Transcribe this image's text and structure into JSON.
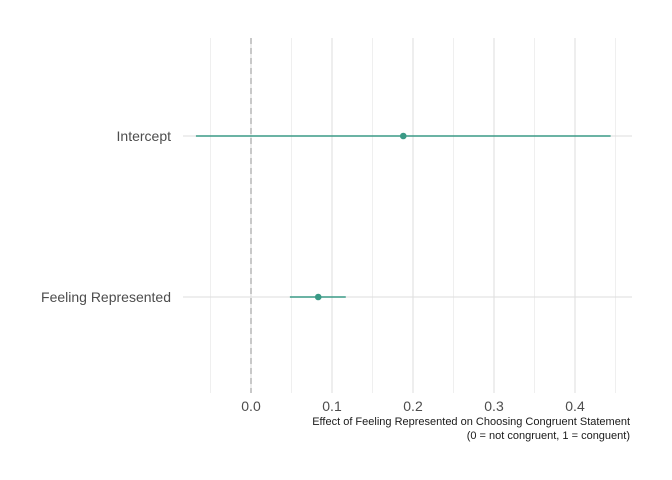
{
  "chart_data": {
    "type": "scatter",
    "subtype": "coefficient-plot",
    "title": "",
    "xlabel_lines": [
      "Effect of Feeling Represented on Choosing Congruent Statement",
      "(0 = not congruent, 1 = conguent)"
    ],
    "ylabel": "",
    "xlim": [
      -0.075,
      0.47
    ],
    "x_ticks": [
      0.0,
      0.1,
      0.2,
      0.3,
      0.4
    ],
    "x_tick_labels": [
      "0.0",
      "0.1",
      "0.2",
      "0.3",
      "0.4"
    ],
    "reference_line": {
      "x": 0,
      "style": "dashed"
    },
    "grid": true,
    "point_color": "#3a9a86",
    "categories": [
      "Intercept",
      "Feeling Represented"
    ],
    "estimates": [
      {
        "label": "Intercept",
        "value": 0.188,
        "ci_low": -0.068,
        "ci_high": 0.444
      },
      {
        "label": "Feeling Represented",
        "value": 0.083,
        "ci_low": 0.048,
        "ci_high": 0.117
      }
    ]
  }
}
